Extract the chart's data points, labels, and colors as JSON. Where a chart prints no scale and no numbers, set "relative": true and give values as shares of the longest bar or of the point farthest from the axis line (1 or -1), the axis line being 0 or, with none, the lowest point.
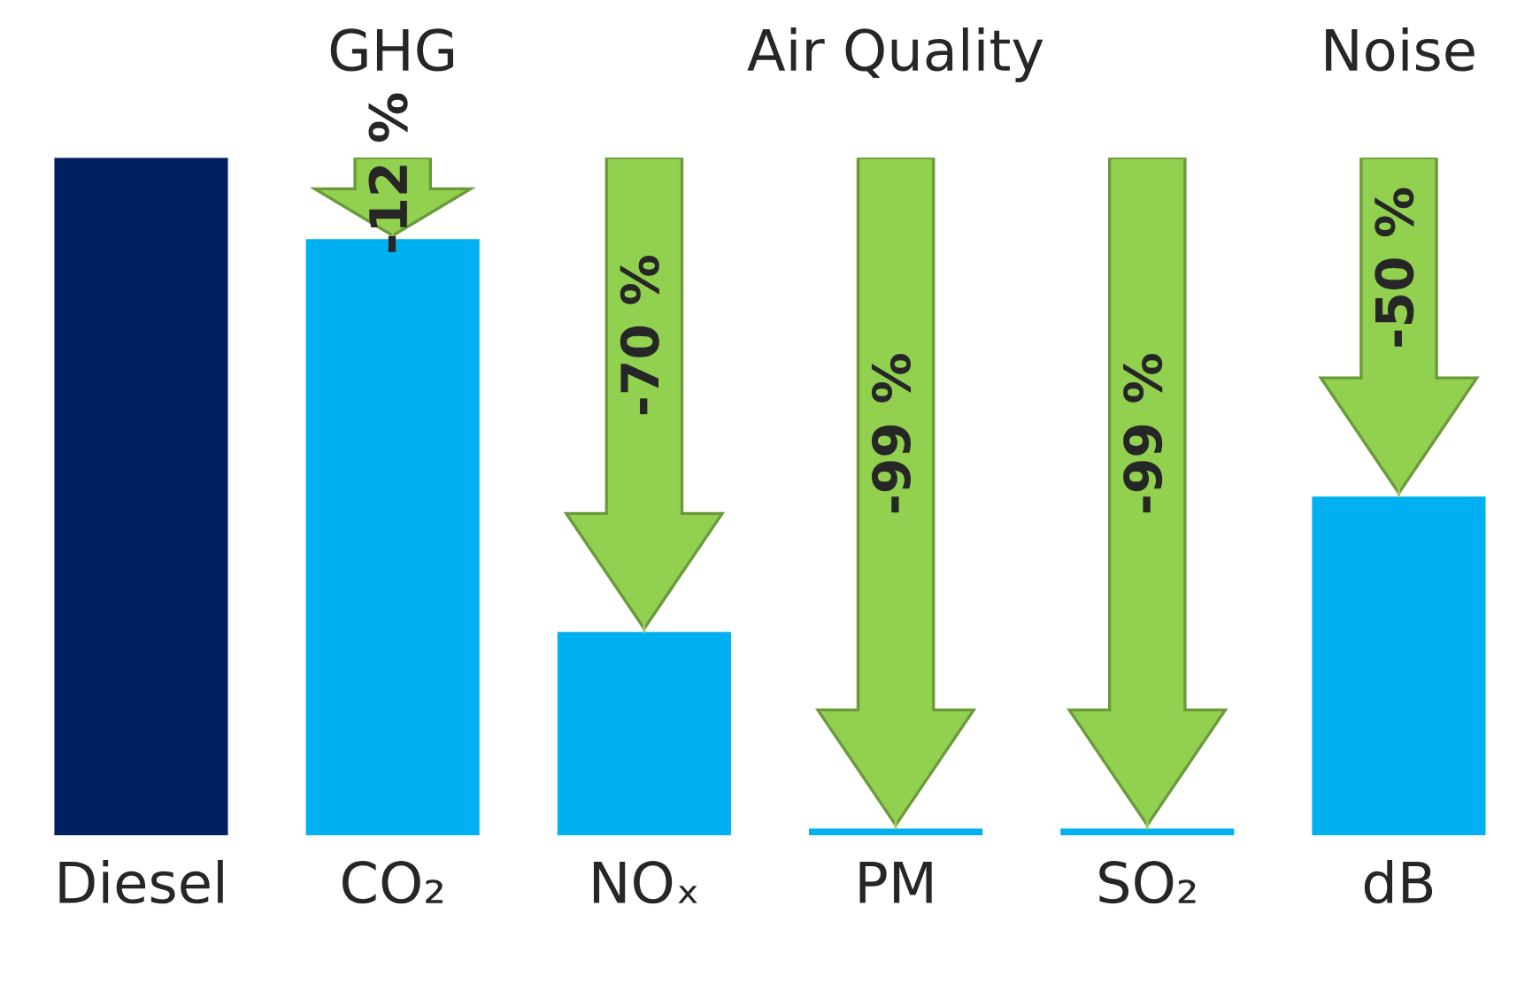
{
  "chart_data": {
    "type": "bar",
    "relative": true,
    "categories": [
      "Diesel",
      "CO₂",
      "NOₓ",
      "PM",
      "SO₂",
      "dB"
    ],
    "values": [
      1,
      0.88,
      0.3,
      0.01,
      0.01,
      0.5
    ],
    "colors": [
      "#002060",
      "#00b0f0",
      "#00b0f0",
      "#00b0f0",
      "#00b0f0",
      "#00b0f0"
    ],
    "annotations": [
      "GHG",
      "Air Quality",
      "Noise",
      {
        "text": "-12 %",
        "x": "CO₂",
        "y": 0.88
      },
      {
        "text": "-70 %",
        "x": "NOₓ",
        "y": 0.3
      },
      {
        "text": "-99 %",
        "x": "PM",
        "y": 0.01
      },
      {
        "text": "-99 %",
        "x": "SO₂",
        "y": 0.01
      },
      {
        "text": "-50 %",
        "x": "dB",
        "y": 0.5
      }
    ],
    "grid": false,
    "legend": false
  }
}
